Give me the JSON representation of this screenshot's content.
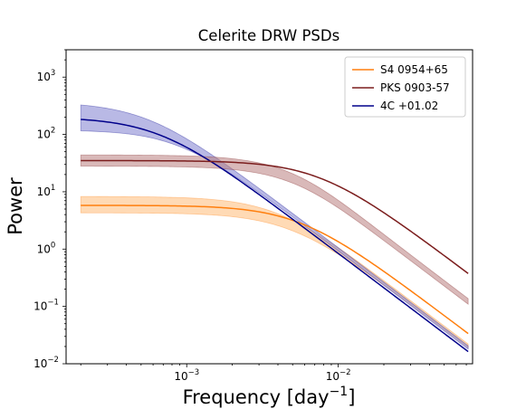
{
  "chart_data": {
    "type": "line",
    "title": "Celerite DRW PSDs",
    "xlabel": "Frequency [day",
    "xlabel_sup": "−1",
    "xlabel_close": "]",
    "ylabel": "Power",
    "x_scale": "log",
    "y_scale": "log",
    "xlim": [
      0.00016,
      0.077
    ],
    "ylim": [
      0.01,
      3000
    ],
    "x_ticks": [
      {
        "value": 0.001,
        "base": "10",
        "exp": "−3"
      },
      {
        "value": 0.01,
        "base": "10",
        "exp": "−2"
      }
    ],
    "y_ticks": [
      {
        "value": 0.01,
        "base": "10",
        "exp": "−2"
      },
      {
        "value": 0.1,
        "base": "10",
        "exp": "−1"
      },
      {
        "value": 1,
        "base": "10",
        "exp": "0"
      },
      {
        "value": 10,
        "base": "10",
        "exp": "1"
      },
      {
        "value": 100,
        "base": "10",
        "exp": "2"
      },
      {
        "value": 1000,
        "base": "10",
        "exp": "3"
      }
    ],
    "grid": false,
    "legend_position": "top-right",
    "x_range": [
      0.0002,
      0.072
    ],
    "series": [
      {
        "name": "S4 0954+65",
        "color": "#ff7f0e",
        "fill": "#ffbb78",
        "plateau": 5.8,
        "f_break": 0.0055,
        "band_low": [
          4.3,
          0.019
        ],
        "band_high": [
          8.3,
          0.022
        ],
        "x": [
          0.0002,
          0.001,
          0.002,
          0.005,
          0.01,
          0.02,
          0.05,
          0.072
        ],
        "values": [
          5.8,
          5.6,
          5.0,
          3.2,
          1.36,
          0.4,
          0.07,
          0.034
        ]
      },
      {
        "name": "PKS 0903-57",
        "color": "#7b1d1d",
        "fill": "#b97f7f",
        "plateau": 35,
        "f_break": 0.0075,
        "band_low": [
          28,
          0.108
        ],
        "band_high": [
          44,
          0.135
        ],
        "x": [
          0.0002,
          0.001,
          0.002,
          0.005,
          0.01,
          0.02,
          0.05,
          0.072
        ],
        "values": [
          35,
          34.4,
          32.7,
          24.2,
          12.6,
          4.4,
          0.77,
          0.38
        ]
      },
      {
        "name": "4C +01.02",
        "color": "#00008b",
        "fill": "#8080d0",
        "plateau": 200,
        "f_break": 0.00065,
        "band_low": [
          120,
          0.018
        ],
        "band_high": [
          370,
          0.0205
        ],
        "x": [
          0.0002,
          0.001,
          0.002,
          0.005,
          0.01,
          0.02,
          0.05,
          0.072
        ],
        "values": [
          183,
          59,
          19.1,
          3.3,
          0.84,
          0.21,
          0.034,
          0.016
        ]
      }
    ]
  }
}
